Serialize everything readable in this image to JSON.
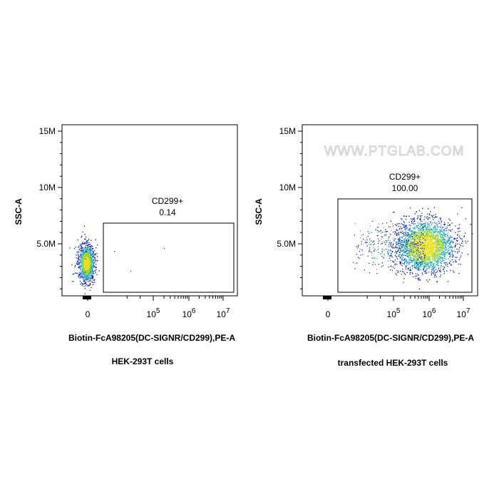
{
  "watermark": "WWW.PTGLAB.COM",
  "chart_data": [
    {
      "type": "scatter",
      "subtype": "flow-cytometry-density",
      "caption": "HEK-293T cells",
      "xlabel": "Biotin-FcA98205(DC-SIGNR/CD299),PE-A",
      "ylabel": "SSC-A",
      "x_scale": "biexponential",
      "y_ticks": [
        {
          "value": 5000000,
          "label": "5.0M"
        },
        {
          "value": 10000000,
          "label": "10M"
        },
        {
          "value": 15000000,
          "label": "15M"
        }
      ],
      "x_ticks": [
        {
          "value": 0,
          "label": "0"
        },
        {
          "value": 100000,
          "base": "10",
          "exp": "5"
        },
        {
          "value": 1000000,
          "base": "10",
          "exp": "6"
        },
        {
          "value": 10000000,
          "base": "10",
          "exp": "7"
        }
      ],
      "gate": {
        "name": "CD299+",
        "percent": "0.14"
      },
      "population": {
        "x_center": 0,
        "y_center": 3300000,
        "description": "negative population near x=0"
      }
    },
    {
      "type": "scatter",
      "subtype": "flow-cytometry-density",
      "caption": "transfected HEK-293T cells",
      "xlabel": "Biotin-FcA98205(DC-SIGNR/CD299),PE-A",
      "ylabel": "SSC-A",
      "x_scale": "biexponential",
      "y_ticks": [
        {
          "value": 5000000,
          "label": "5.0M"
        },
        {
          "value": 10000000,
          "label": "10M"
        },
        {
          "value": 15000000,
          "label": "15M"
        }
      ],
      "x_ticks": [
        {
          "value": 0,
          "label": "0"
        },
        {
          "value": 100000,
          "base": "10",
          "exp": "5"
        },
        {
          "value": 1000000,
          "base": "10",
          "exp": "6"
        },
        {
          "value": 10000000,
          "base": "10",
          "exp": "7"
        }
      ],
      "gate": {
        "name": "CD299+",
        "percent": "100.00"
      },
      "population": {
        "x_center": 1000000,
        "y_center": 4800000,
        "description": "positive population around 10^6"
      }
    }
  ]
}
